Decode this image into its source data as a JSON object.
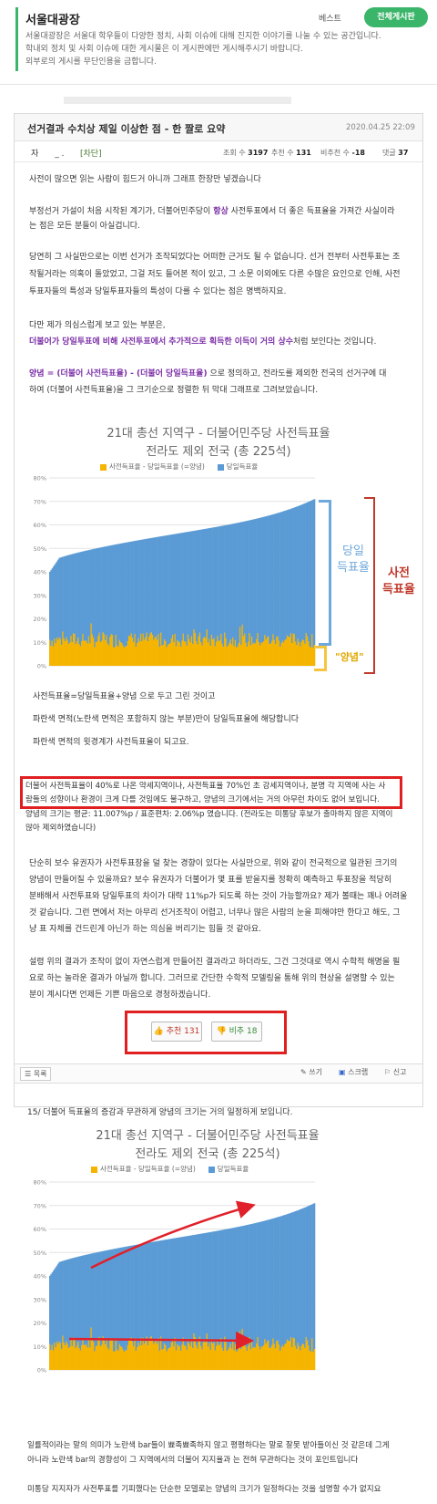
{
  "board": {
    "title": "서울대광장",
    "best_label": "베스트",
    "all_button": "전체게시판",
    "desc": [
      "서울대광장은 서울대 학우들이 다양한 정치, 사회 이슈에 대해 진지한 이야기를 나눌 수 있는 공간입니다.",
      "학내외 정치 및 사회 이슈에 대한 게시물은 이 게시판에만 게시해주시기 바랍니다.",
      "외부로의 게시를 무단인용을 금합니다."
    ]
  },
  "post": {
    "title": "선거결과 수치상 제일 이상한 점 - 한 짤로 요약",
    "date": "2020.04.25 22:09",
    "author": "자",
    "author_mask": "_ .",
    "block_label": "[차단]",
    "views_label": "조회 수",
    "views": "3197",
    "recommend_label": "추천 수",
    "recommend": "131",
    "dislike_label": "비추천 수",
    "dislike": "-18",
    "comments_label": "댓글",
    "comments": "37",
    "paragraphs": {
      "p1": "사전이 많으면 읽는 사람이 힘드거 아니까 그래프 한장만 넣겠습니다",
      "p2a": "부정선거 가설이 처음 시작된 계기가, 더불어민주당이 ",
      "p2b": "항상",
      "p2c": " 사전투표에서 더 좋은 득표율을 가져간 사실이라",
      "p2d": "는 점은 모든 분들이 아실겁니다.",
      "p3a": "당연히 그 사실만으로는 이번 선거가 조작되었다는 어떠한 근거도 될 수 없습니다. 선거 전부터 사전투표는 조",
      "p3b": "작될거라는 의혹이 돌았었고, 그걸 저도 들어본 적이 있고, 그 소문 이외에도 다른 수많은 요인으로 인해, 사전",
      "p3c": "투표자들의 특성과 당일투표자들의 특성이 다를 수 있다는 점은 명백하지요.",
      "p4": "다만 제가 의심스럽게 보고 있는 부분은,",
      "p5": "더불어가 당일투표에 비해 사전투표에서 추가적으로 획득한 이득이 거의 상수",
      "p5b": "처럼 보인다는 것입니다.",
      "p6a": "양념 = (더불어 사전득표율) - (더불어 당일득표율)",
      "p6b": " 으로 정의하고, 전라도를 제외한 전국의 선거구에 대",
      "p6c": "하여 (더불어 사전득표율)을 그 크기순으로 정렬한 뒤 막대 그래프로 그려보았습니다.",
      "c1": "사전득표율=당일득표율+양념 으로 두고 그린 것이고",
      "c2": "파란색 면적(노란색 면적은 포함하지 않는 부분)만이 당일득표율에 해당합니다",
      "c3": "파란색 면적의 윗경계가 사전득표율이 되고요.",
      "r1": "더불어 사전득표율이 40%로 나온 약세지역이나, 사전득표율 70%인 초 강세지역이나, 분명 각 지역에 사는 사",
      "r2": "람들의 성향이나 환경이 크게 다를 것임에도 불구하고, 양념의 크기에서는 거의 아무런 차이도 없어 보입니다.",
      "s1": "양념의 크기는 평균: 11.007%p / 표준편차: 2.06%p 였습니다. (전라도는 미통당 후보가 출마하지 않은 지역이",
      "s2": "많아 제외하였습니다)",
      "t1": "단순히 보수 유권자가 사전투표장을 덜 찾는 경향이 있다는 사실만으로, 위와 같이 전국적으로 일관된 크기의",
      "t2": "양념이 만들어질 수 있을까요? 보수 유권자가 더불어가 몇 표를 받을지를 정확히 예측하고 투표장을 적당히",
      "t3": "분배해서 사전투표와 당일투표의 차이가 대략 11%p가 되도록 하는 것이 가능할까요? 제가 볼때는 꽤나 어려울",
      "t4": "것 같습니다. 그런 면에서 저는 아무리 선거조작이 어렵고, 너무나 많은 사람의 눈을 피해야만 한다고 해도, 그",
      "t5": "냥 표 자체를 건드린게 아닌가 하는 의심을 버리기는 힘들 것 같아요.",
      "u1": "설령 위의 결과가 조작이 없이 자연스럽게 만들어진 결과라고 하더라도, 그건 그것대로 역시 수학적 해명을 필",
      "u2": "요로 하는 놀라운 결과가 아닐까 합니다. 그러므로 간단한 수학적 모델링을 통해 위의 현상을 설명할 수 있는",
      "u3": "분이 계시다면 언제든 기쁜 마음으로 경청하겠습니다."
    },
    "vote_up": "추천 131",
    "vote_down": "비추 18",
    "tools": {
      "list": "목록",
      "write": "쓰기",
      "scrap": "스크랩",
      "report": "신고"
    },
    "comment_line": "15/ 더불어 득표율의 증감과 무관하게 양념의 크기는 거의 일정하게 보입니다.",
    "bottom_p1": "일률적이라는 말의 의미가 노란색 bar들이 뾰족뾰족하지 않고 평평하다는 말로 잘못 받아들이신 것 같은데 그게",
    "bottom_p2": "아니라 노란색 bar의 경향성이 그 지역에서의 더불어 지지율과 는 전혀 무관하다는 것이 포인트입니다",
    "bottom_p3": "미통당 지지자가 사전투표를 기피했다는 단순한 모델로는 양념의 크기가 일정하다는 것을 설명할 수가 없지요"
  },
  "chart_data": [
    {
      "type": "bar",
      "title": "21대 총선 지역구 - 더불어민주당 사전득표율",
      "subtitle": "전라도 제외 전국 (총 225석)",
      "legend": [
        "사전득표율 - 당일득표율 (=양념)",
        "당일득표율"
      ],
      "legend_placement": "top",
      "colors": {
        "yangnyeom": "#f5b400",
        "dangil": "#5b9bd5"
      },
      "ylim": [
        0,
        80
      ],
      "yticks": [
        "0%",
        "10%",
        "20%",
        "30%",
        "40%",
        "50%",
        "60%",
        "70%",
        "80%"
      ],
      "grid": true,
      "n_bars": 225,
      "sajeon_range": [
        38,
        71
      ],
      "yangnyeom_mean": 11.007,
      "yangnyeom_std": 2.06,
      "annotations": {
        "dangil": "당일\n득표율",
        "yangnyeom": "\"양념\"",
        "sajeon": "사전\n득표율"
      }
    },
    {
      "type": "bar",
      "title": "21대 총선 지역구 - 더불어민주당 사전득표율",
      "subtitle": "전라도 제외 전국 (총 225석)",
      "legend": [
        "사전득표율 - 당일득표율 (=양념)",
        "당일득표율"
      ],
      "legend_placement": "top",
      "colors": {
        "yangnyeom": "#f5b400",
        "dangil": "#5b9bd5"
      },
      "ylim": [
        0,
        80
      ],
      "yticks": [
        "0%",
        "10%",
        "20%",
        "30%",
        "40%",
        "50%",
        "60%",
        "70%",
        "80%"
      ],
      "grid": true,
      "n_bars": 225,
      "sajeon_range": [
        38,
        71
      ],
      "yangnyeom_mean": 11.007,
      "yangnyeom_std": 2.06
    }
  ]
}
